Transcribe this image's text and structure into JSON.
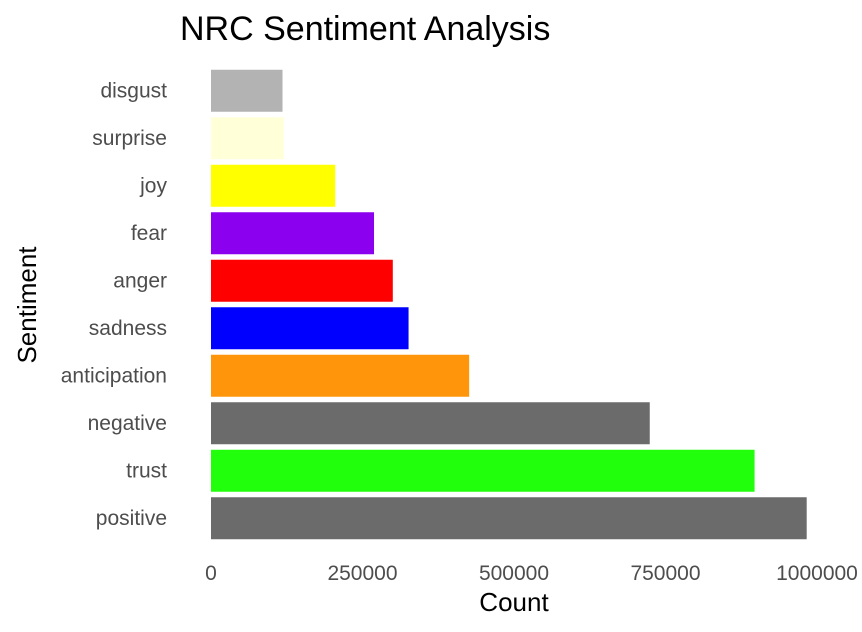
{
  "chart_data": {
    "type": "bar",
    "orientation": "horizontal",
    "title": "NRC Sentiment Analysis",
    "xlabel": "Count",
    "ylabel": "Sentiment",
    "categories": [
      "positive",
      "trust",
      "negative",
      "anticipation",
      "sadness",
      "anger",
      "fear",
      "joy",
      "surprise",
      "disgust"
    ],
    "values": [
      983000,
      897000,
      724000,
      426000,
      326000,
      300000,
      269000,
      205000,
      120000,
      118000
    ],
    "colors": [
      "#6b6b6b",
      "#22ff0c",
      "#6b6b6b",
      "#ff950a",
      "#0000ff",
      "#ff0000",
      "#8b00ee",
      "#ffff00",
      "#ffffd8",
      "#b3b3b3"
    ],
    "xlim": [
      0,
      1000000
    ],
    "xticks": [
      0,
      250000,
      500000,
      750000,
      1000000
    ],
    "xtick_labels": [
      "0",
      "250000",
      "500000",
      "750000",
      "1000000"
    ],
    "grid": false,
    "legend": "none"
  }
}
